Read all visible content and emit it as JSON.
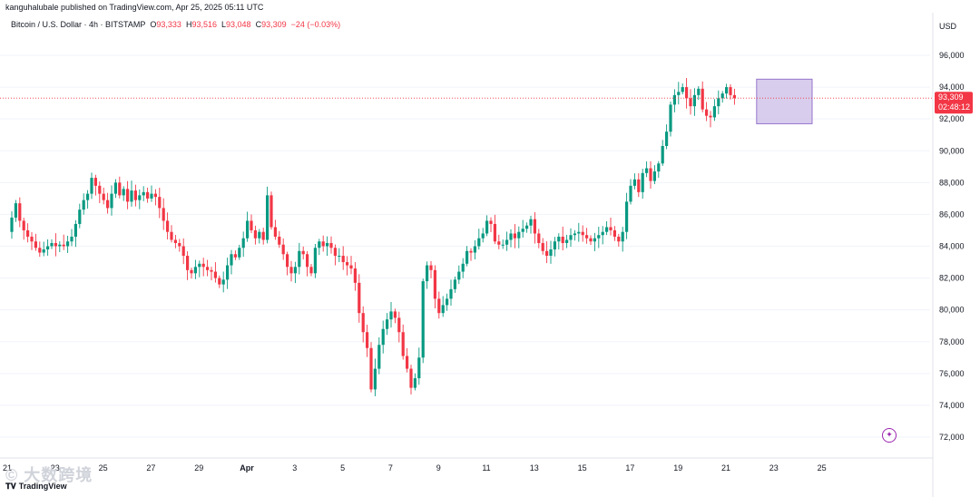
{
  "header": {
    "published": "kanguhalubale published on TradingView.com, Apr 25, 2025 05:11 UTC"
  },
  "legend": {
    "symbol": "Bitcoin / U.S. Dollar · 4h · BITSTAMP",
    "open_label": "O",
    "open": "93,333",
    "high_label": "H",
    "high": "93,516",
    "low_label": "L",
    "low": "93,048",
    "close_label": "C",
    "close": "93,309",
    "change": "−24 (−0.03%)"
  },
  "axis": {
    "currency": "USD"
  },
  "price_tag": {
    "price": "93,309",
    "countdown": "02:48:12"
  },
  "watermark": "© 大数跨境",
  "logo": "TradingView",
  "colors": {
    "up": "#089981",
    "down": "#F23645",
    "box": "#b39ddb"
  },
  "chart_data": {
    "type": "candlestick",
    "y_ticks": [
      96000,
      94000,
      92000,
      90000,
      88000,
      86000,
      84000,
      82000,
      80000,
      78000,
      76000,
      74000,
      72000
    ],
    "y_tick_labels": [
      "96,000",
      "94,000",
      "92,000",
      "90,000",
      "88,000",
      "86,000",
      "84,000",
      "82,000",
      "80,000",
      "78,000",
      "76,000",
      "74,000",
      "72,000"
    ],
    "ylim": [
      71500,
      97500
    ],
    "x_tick_labels": [
      "21",
      "23",
      "25",
      "27",
      "29",
      "Apr",
      "3",
      "5",
      "7",
      "9",
      "11",
      "13",
      "15",
      "17",
      "19",
      "21",
      "23",
      "25"
    ],
    "x_tick_index": [
      0,
      12,
      24,
      36,
      48,
      60,
      72,
      84,
      96,
      108,
      120,
      132,
      144,
      156,
      168,
      180,
      192,
      204
    ],
    "closes": [
      85800,
      86700,
      85600,
      85000,
      84600,
      84300,
      83900,
      83600,
      83800,
      84000,
      84200,
      84000,
      84100,
      84000,
      84300,
      84600,
      85400,
      86300,
      86900,
      87300,
      88300,
      87800,
      87300,
      86900,
      86400,
      87300,
      88000,
      87200,
      87600,
      86800,
      87500,
      86900,
      87200,
      87400,
      87000,
      87300,
      87100,
      86400,
      85600,
      84900,
      84400,
      84200,
      84000,
      83400,
      82500,
      82300,
      82700,
      82900,
      82700,
      82500,
      82400,
      82000,
      81600,
      81900,
      82800,
      83500,
      83300,
      83900,
      84500,
      85600,
      85000,
      84500,
      84900,
      84400,
      87200,
      85200,
      84600,
      84100,
      83500,
      82700,
      82300,
      82700,
      83700,
      83500,
      82700,
      82300,
      83900,
      84300,
      84000,
      84200,
      83900,
      83400,
      83400,
      83000,
      82800,
      82600,
      81700,
      79800,
      78600,
      77600,
      75000,
      76300,
      77800,
      78800,
      79400,
      79900,
      79500,
      78600,
      77100,
      76300,
      75100,
      75700,
      77000,
      81800,
      82800,
      82500,
      80700,
      79800,
      80300,
      80700,
      81300,
      81900,
      82400,
      82900,
      83700,
      83600,
      84000,
      84500,
      84800,
      85600,
      85400,
      84300,
      84100,
      84100,
      84400,
      84800,
      84500,
      84900,
      85100,
      85300,
      85700,
      84800,
      84200,
      83700,
      83400,
      83800,
      84300,
      84600,
      84200,
      84400,
      84700,
      84800,
      84900,
      84700,
      84500,
      84300,
      84500,
      84700,
      84900,
      85200,
      85000,
      84600,
      84300,
      84900,
      86800,
      87800,
      88200,
      87400,
      88600,
      88900,
      88100,
      88700,
      89200,
      90300,
      91200,
      92900,
      93500,
      93700,
      94000,
      93300,
      92800,
      93500,
      93900,
      92600,
      92200,
      92100,
      92800,
      93300,
      93600,
      94000,
      93500,
      93309
    ],
    "box": {
      "x_start": 187,
      "x_end": 200,
      "y_top": 94500,
      "y_bottom": 91700
    },
    "last_price": 93309
  }
}
